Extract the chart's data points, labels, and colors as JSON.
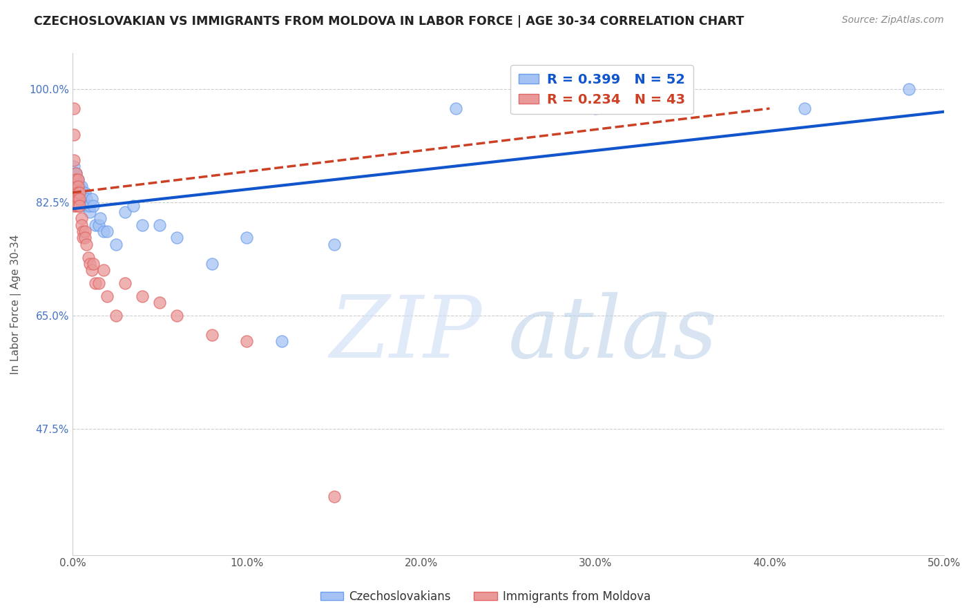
{
  "title": "CZECHOSLOVAKIAN VS IMMIGRANTS FROM MOLDOVA IN LABOR FORCE | AGE 30-34 CORRELATION CHART",
  "source": "Source: ZipAtlas.com",
  "ylabel": "In Labor Force | Age 30-34",
  "xmin": 0.0,
  "xmax": 0.5,
  "ymin": 0.28,
  "ymax": 1.055,
  "yticks": [
    0.475,
    0.65,
    0.825,
    1.0
  ],
  "ytick_labels": [
    "47.5%",
    "65.0%",
    "82.5%",
    "100.0%"
  ],
  "xticks": [
    0.0,
    0.1,
    0.2,
    0.3,
    0.4,
    0.5
  ],
  "xtick_labels": [
    "0.0%",
    "10.0%",
    "20.0%",
    "30.0%",
    "40.0%",
    "50.0%"
  ],
  "blue_label": "Czechoslovakians",
  "pink_label": "Immigrants from Moldova",
  "blue_R": 0.399,
  "blue_N": 52,
  "pink_R": 0.234,
  "pink_N": 43,
  "blue_color": "#a4c2f4",
  "pink_color": "#ea9999",
  "blue_edge_color": "#6d9eeb",
  "pink_edge_color": "#e06666",
  "blue_line_color": "#1155cc",
  "pink_line_color": "#cc4125",
  "blue_x": [
    0.001,
    0.001,
    0.001,
    0.001,
    0.001,
    0.002,
    0.002,
    0.002,
    0.002,
    0.002,
    0.002,
    0.002,
    0.003,
    0.003,
    0.003,
    0.003,
    0.003,
    0.004,
    0.004,
    0.004,
    0.005,
    0.005,
    0.006,
    0.006,
    0.007,
    0.007,
    0.008,
    0.008,
    0.009,
    0.01,
    0.01,
    0.011,
    0.012,
    0.013,
    0.015,
    0.016,
    0.018,
    0.02,
    0.025,
    0.03,
    0.035,
    0.04,
    0.05,
    0.06,
    0.08,
    0.1,
    0.12,
    0.15,
    0.22,
    0.3,
    0.42,
    0.48
  ],
  "blue_y": [
    0.86,
    0.85,
    0.84,
    0.87,
    0.88,
    0.84,
    0.85,
    0.86,
    0.87,
    0.84,
    0.85,
    0.83,
    0.84,
    0.85,
    0.86,
    0.83,
    0.84,
    0.84,
    0.85,
    0.83,
    0.84,
    0.85,
    0.83,
    0.84,
    0.82,
    0.84,
    0.83,
    0.82,
    0.82,
    0.81,
    0.82,
    0.83,
    0.82,
    0.79,
    0.79,
    0.8,
    0.78,
    0.78,
    0.76,
    0.81,
    0.82,
    0.79,
    0.79,
    0.77,
    0.73,
    0.77,
    0.61,
    0.76,
    0.97,
    0.97,
    0.97,
    1.0
  ],
  "pink_x": [
    0.001,
    0.001,
    0.001,
    0.001,
    0.001,
    0.001,
    0.002,
    0.002,
    0.002,
    0.002,
    0.002,
    0.002,
    0.003,
    0.003,
    0.003,
    0.003,
    0.003,
    0.004,
    0.004,
    0.004,
    0.005,
    0.005,
    0.006,
    0.006,
    0.007,
    0.007,
    0.008,
    0.009,
    0.01,
    0.011,
    0.012,
    0.013,
    0.015,
    0.018,
    0.02,
    0.025,
    0.03,
    0.04,
    0.05,
    0.06,
    0.08,
    0.1,
    0.15
  ],
  "pink_y": [
    0.97,
    0.93,
    0.89,
    0.86,
    0.84,
    0.82,
    0.87,
    0.86,
    0.85,
    0.84,
    0.83,
    0.82,
    0.86,
    0.85,
    0.84,
    0.83,
    0.82,
    0.84,
    0.83,
    0.82,
    0.8,
    0.79,
    0.78,
    0.77,
    0.78,
    0.77,
    0.76,
    0.74,
    0.73,
    0.72,
    0.73,
    0.7,
    0.7,
    0.72,
    0.68,
    0.65,
    0.7,
    0.68,
    0.67,
    0.65,
    0.62,
    0.61,
    0.37
  ],
  "blue_trendline_x": [
    0.0,
    0.5
  ],
  "blue_trendline_y": [
    0.815,
    0.965
  ],
  "pink_trendline_x": [
    0.0,
    0.4
  ],
  "pink_trendline_y": [
    0.84,
    0.97
  ]
}
